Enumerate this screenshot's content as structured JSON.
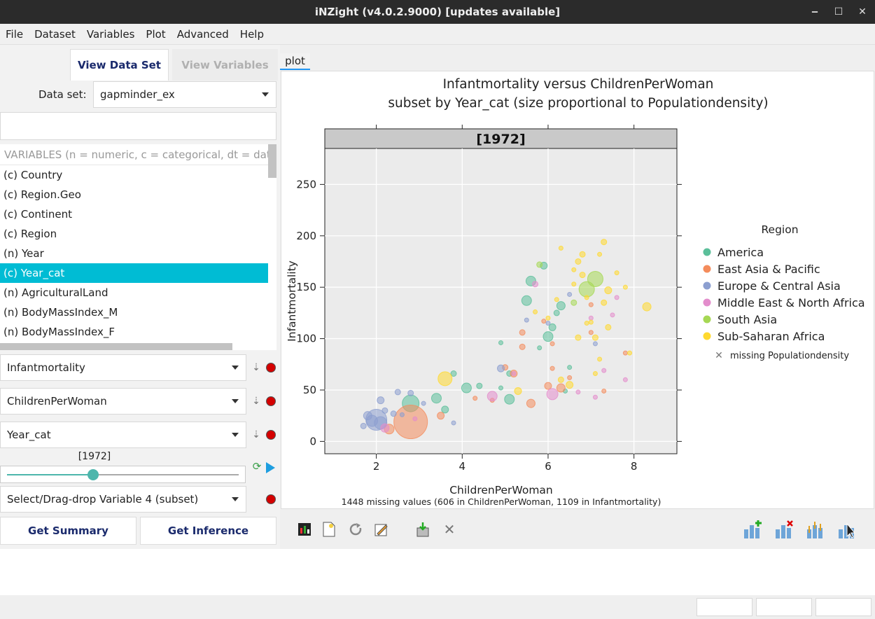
{
  "window": {
    "title": "iNZight (v4.0.2.9000)  [updates available]",
    "controls": [
      "‒",
      "☐",
      "✕"
    ]
  },
  "menu": [
    "File",
    "Dataset",
    "Variables",
    "Plot",
    "Advanced",
    "Help"
  ],
  "left": {
    "tab_active": "View Data Set",
    "tab_inactive": "View Variables",
    "dataset_label": "Data set:",
    "dataset_value": "gapminder_ex",
    "var_header": "VARIABLES (n = numeric, c = categorical, dt = date",
    "variables": [
      "(c) Country",
      "(c) Region.Geo",
      "(c) Continent",
      "(c) Region",
      "(n) Year",
      "(c) Year_cat",
      "(n) AgriculturalLand",
      "(n) BodyMassIndex_M",
      "(n) BodyMassIndex_F"
    ],
    "selected_index": 5,
    "var1": "Infantmortality",
    "var2": "ChildrenPerWoman",
    "var3": "Year_cat",
    "slider_label": "[1972]",
    "slider_fraction": 0.37,
    "var4": "Select/Drag-drop Variable 4 (subset)",
    "summary_btn": "Get Summary",
    "inference_btn": "Get Inference"
  },
  "plot": {
    "tab": "plot",
    "title1": "Infantmortality versus ChildrenPerWoman",
    "title2": "subset by Year_cat (size proportional to Populationdensity)",
    "strip": "[1972]",
    "footer": "1448 missing values (606 in ChildrenPerWoman, 1109 in Infantmortality)",
    "legend_title": "Region",
    "legend_missing": "missing Populationdensity"
  },
  "chart_data": {
    "type": "scatter",
    "xlabel": "ChildrenPerWoman",
    "ylabel": "Infantmortality",
    "xlim": [
      0.8,
      9.0
    ],
    "ylim": [
      -12,
      285
    ],
    "xticks": [
      2,
      4,
      6,
      8
    ],
    "yticks": [
      0,
      50,
      100,
      150,
      200,
      250
    ],
    "grid": true,
    "legend_position": "right",
    "series": [
      {
        "name": "America",
        "color": "#5bbf9a",
        "points": [
          [
            2.8,
            37,
            12
          ],
          [
            3.4,
            42,
            7
          ],
          [
            3.6,
            31,
            5
          ],
          [
            3.8,
            66,
            4
          ],
          [
            4.1,
            52,
            7
          ],
          [
            4.4,
            54,
            4
          ],
          [
            4.9,
            52,
            3
          ],
          [
            5.1,
            41,
            7
          ],
          [
            5.1,
            66,
            4
          ],
          [
            4.9,
            96,
            3
          ],
          [
            5.5,
            137,
            7
          ],
          [
            5.6,
            156,
            7
          ],
          [
            5.9,
            171,
            5
          ],
          [
            6.0,
            102,
            7
          ],
          [
            6.1,
            111,
            5
          ],
          [
            6.2,
            125,
            4
          ],
          [
            6.3,
            132,
            6
          ],
          [
            6.5,
            72,
            3
          ],
          [
            6.4,
            49,
            3
          ],
          [
            5.8,
            91,
            3
          ]
        ]
      },
      {
        "name": "East Asia & Pacific",
        "color": "#f48c5c",
        "points": [
          [
            2.8,
            19,
            24
          ],
          [
            2.3,
            12,
            7
          ],
          [
            3.5,
            25,
            5
          ],
          [
            4.3,
            42,
            3
          ],
          [
            4.7,
            40,
            3
          ],
          [
            5.0,
            72,
            4
          ],
          [
            5.2,
            66,
            5
          ],
          [
            5.4,
            106,
            4
          ],
          [
            5.4,
            92,
            4
          ],
          [
            5.6,
            37,
            6
          ],
          [
            5.9,
            117,
            3
          ],
          [
            6.0,
            54,
            5
          ],
          [
            6.1,
            95,
            3
          ],
          [
            6.3,
            52,
            6
          ],
          [
            6.5,
            62,
            3
          ],
          [
            6.1,
            71,
            3
          ],
          [
            7.0,
            133,
            3
          ],
          [
            7.0,
            106,
            3
          ],
          [
            7.3,
            49,
            3
          ],
          [
            7.8,
            86,
            3
          ]
        ]
      },
      {
        "name": "Europe & Central Asia",
        "color": "#8c9fd0",
        "points": [
          [
            2.0,
            21,
            15
          ],
          [
            1.7,
            15,
            4
          ],
          [
            1.8,
            25,
            6
          ],
          [
            1.9,
            20,
            8
          ],
          [
            2.1,
            18,
            9
          ],
          [
            2.1,
            40,
            5
          ],
          [
            2.2,
            30,
            4
          ],
          [
            2.4,
            27,
            4
          ],
          [
            2.5,
            48,
            4
          ],
          [
            2.6,
            26,
            3
          ],
          [
            2.8,
            47,
            4
          ],
          [
            3.1,
            37,
            3
          ],
          [
            3.8,
            18,
            3
          ],
          [
            4.9,
            71,
            5
          ],
          [
            5.5,
            118,
            3
          ],
          [
            6.0,
            115,
            3
          ],
          [
            6.5,
            143,
            3
          ],
          [
            7.1,
            95,
            3
          ]
        ]
      },
      {
        "name": "Middle East & North Africa",
        "color": "#e38dcc",
        "points": [
          [
            2.2,
            13,
            6
          ],
          [
            2.9,
            22,
            3
          ],
          [
            4.7,
            44,
            7
          ],
          [
            5.2,
            66,
            3
          ],
          [
            5.7,
            153,
            4
          ],
          [
            6.1,
            46,
            8
          ],
          [
            6.7,
            48,
            3
          ],
          [
            7.1,
            43,
            3
          ],
          [
            7.0,
            120,
            3
          ],
          [
            7.3,
            69,
            3
          ],
          [
            7.6,
            140,
            3
          ],
          [
            7.8,
            60,
            3
          ],
          [
            7.5,
            123,
            3
          ]
        ]
      },
      {
        "name": "South Asia",
        "color": "#a6d854",
        "points": [
          [
            6.9,
            148,
            11
          ],
          [
            7.1,
            158,
            11
          ],
          [
            6.6,
            135,
            4
          ],
          [
            5.8,
            172,
            4
          ]
        ]
      },
      {
        "name": "Sub-Saharan Africa",
        "color": "#ffd92f",
        "points": [
          [
            3.6,
            61,
            10
          ],
          [
            5.3,
            49,
            5
          ],
          [
            5.7,
            126,
            3
          ],
          [
            6.0,
            120,
            3
          ],
          [
            6.3,
            60,
            4
          ],
          [
            6.3,
            188,
            3
          ],
          [
            6.6,
            167,
            3
          ],
          [
            6.6,
            153,
            3
          ],
          [
            6.7,
            175,
            4
          ],
          [
            6.8,
            182,
            4
          ],
          [
            6.8,
            162,
            4
          ],
          [
            6.9,
            140,
            3
          ],
          [
            6.9,
            115,
            3
          ],
          [
            7.0,
            116,
            3
          ],
          [
            7.1,
            101,
            4
          ],
          [
            7.2,
            182,
            3
          ],
          [
            7.3,
            135,
            4
          ],
          [
            7.3,
            194,
            4
          ],
          [
            7.4,
            147,
            5
          ],
          [
            7.4,
            111,
            4
          ],
          [
            7.1,
            66,
            3
          ],
          [
            7.6,
            164,
            3
          ],
          [
            7.8,
            150,
            3
          ],
          [
            8.3,
            131,
            6
          ],
          [
            7.9,
            86,
            3
          ],
          [
            6.5,
            55,
            5
          ],
          [
            6.7,
            101,
            4
          ],
          [
            7.2,
            80,
            3
          ],
          [
            6.2,
            138,
            3
          ]
        ]
      }
    ]
  }
}
